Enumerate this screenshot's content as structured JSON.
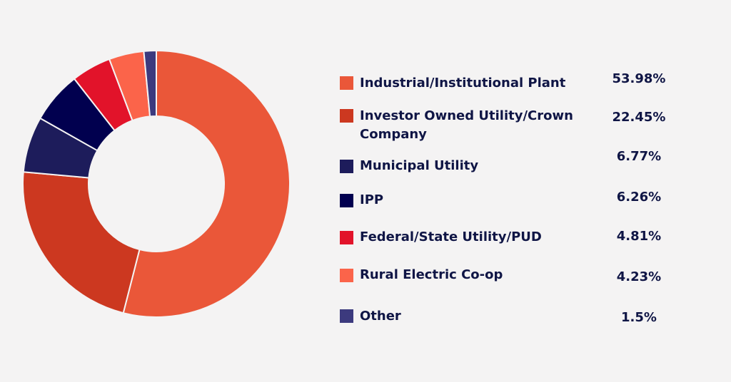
{
  "chart_data": {
    "type": "pie",
    "variant": "donut",
    "legend_position": "right",
    "slices": [
      {
        "label": "Industrial/Institutional Plant",
        "value": 53.98,
        "value_label": "53.98%",
        "color": "#ea5739"
      },
      {
        "label": "Investor Owned Utility/Crown Company",
        "value": 22.45,
        "value_label": "22.45%",
        "color": "#cc3820"
      },
      {
        "label": "Municipal Utility",
        "value": 6.77,
        "value_label": "6.77%",
        "color": "#1d1c5b"
      },
      {
        "label": "IPP",
        "value": 6.26,
        "value_label": "6.26%",
        "color": "#01004f"
      },
      {
        "label": "Federal/State Utility/PUD",
        "value": 4.81,
        "value_label": "4.81%",
        "color": "#e2132a"
      },
      {
        "label": "Rural Electric Co-op",
        "value": 4.23,
        "value_label": "4.23%",
        "color": "#fb644a"
      },
      {
        "label": "Other",
        "value": 1.5,
        "value_label": "1.5%",
        "color": "#3c3a7e"
      }
    ]
  }
}
